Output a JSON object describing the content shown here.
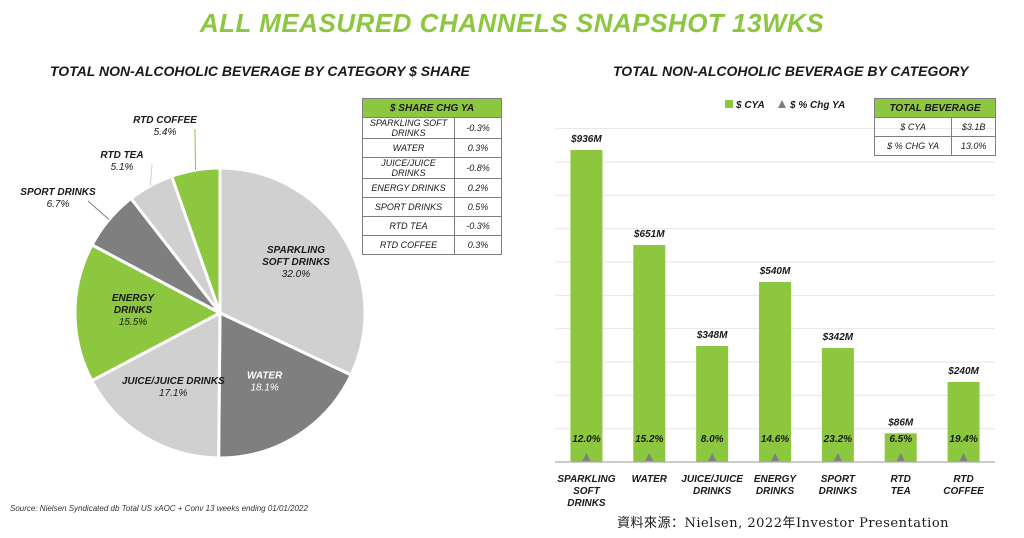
{
  "title": "ALL MEASURED CHANNELS SNAPSHOT 13WKS",
  "source_note": "Source: Nielsen Syndicated db Total US xAOC + Conv 13 weeks ending 01/01/2022",
  "credit": "資料來源：Nielsen, 2022年Investor Presentation",
  "chart_data": [
    {
      "type": "pie",
      "title": "TOTAL NON-ALCOHOLIC BEVERAGE BY CATEGORY $ SHARE",
      "slices": [
        {
          "name": "SPARKLING SOFT DRINKS",
          "label_lines": [
            "SPARKLING",
            "SOFT DRINKS"
          ],
          "value_label": "32.0%",
          "value": 32.0,
          "color": "#d0d0d0"
        },
        {
          "name": "WATER",
          "label_lines": [
            "WATER"
          ],
          "value_label": "18.1%",
          "value": 18.1,
          "color": "#7f7f7f"
        },
        {
          "name": "JUICE/JUICE DRINKS",
          "label_lines": [
            "JUICE/JUICE DRINKS"
          ],
          "value_label": "17.1%",
          "value": 17.1,
          "color": "#d0d0d0"
        },
        {
          "name": "ENERGY DRINKS",
          "label_lines": [
            "ENERGY",
            "DRINKS"
          ],
          "value_label": "15.5%",
          "value": 15.5,
          "color": "#8dc63f"
        },
        {
          "name": "SPORT DRINKS",
          "label_lines": [
            "SPORT DRINKS"
          ],
          "value_label": "6.7%",
          "value": 6.7,
          "color": "#7f7f7f"
        },
        {
          "name": "RTD TEA",
          "label_lines": [
            "RTD TEA"
          ],
          "value_label": "5.1%",
          "value": 5.1,
          "color": "#d0d0d0"
        },
        {
          "name": "RTD COFFEE",
          "label_lines": [
            "RTD COFFEE"
          ],
          "value_label": "5.4%",
          "value": 5.4,
          "color": "#8dc63f"
        }
      ]
    },
    {
      "type": "bar",
      "title": "TOTAL NON-ALCOHOLIC BEVERAGE BY CATEGORY",
      "legend": [
        {
          "name": "$ CYA",
          "color": "#8dc63f",
          "marker": "square"
        },
        {
          "name": "$ % Chg YA",
          "color": "#7f7f7f",
          "marker": "triangle"
        }
      ],
      "categories": [
        {
          "lines": [
            "SPARKLING",
            "SOFT",
            "DRINKS"
          ]
        },
        {
          "lines": [
            "WATER"
          ]
        },
        {
          "lines": [
            "JUICE/JUICE",
            "DRINKS"
          ]
        },
        {
          "lines": [
            "ENERGY",
            "DRINKS"
          ]
        },
        {
          "lines": [
            "SPORT",
            "DRINKS"
          ]
        },
        {
          "lines": [
            "RTD",
            "TEA"
          ]
        },
        {
          "lines": [
            "RTD",
            "COFFEE"
          ]
        }
      ],
      "series": [
        {
          "name": "$ CYA",
          "unit": "$M",
          "values": [
            936,
            651,
            348,
            540,
            342,
            86,
            240
          ],
          "labels": [
            "$936M",
            "$651M",
            "$348M",
            "$540M",
            "$342M",
            "$86M",
            "$240M"
          ]
        },
        {
          "name": "$ % Chg YA",
          "values": [
            12.0,
            15.2,
            8.0,
            14.6,
            23.2,
            6.5,
            19.4
          ],
          "labels": [
            "12.0%",
            "15.2%",
            "8.0%",
            "14.6%",
            "23.2%",
            "6.5%",
            "19.4%"
          ]
        }
      ],
      "ylim": [
        0,
        1050
      ],
      "grid": true
    }
  ],
  "share_table": {
    "header": "$ SHARE CHG YA",
    "rows": [
      {
        "category": "SPARKLING SOFT DRINKS",
        "value": "-0.3%"
      },
      {
        "category": "WATER",
        "value": "0.3%"
      },
      {
        "category": "JUICE/JUICE DRINKS",
        "value": "-0.8%"
      },
      {
        "category": "ENERGY DRINKS",
        "value": "0.2%"
      },
      {
        "category": "SPORT DRINKS",
        "value": "0.5%"
      },
      {
        "category": "RTD TEA",
        "value": "-0.3%"
      },
      {
        "category": "RTD COFFEE",
        "value": "0.3%"
      }
    ]
  },
  "total_table": {
    "header": "TOTAL BEVERAGE",
    "rows": [
      {
        "metric": "$ CYA",
        "value": "$3.1B"
      },
      {
        "metric": "$ % CHG YA",
        "value": "13.0%"
      }
    ]
  }
}
